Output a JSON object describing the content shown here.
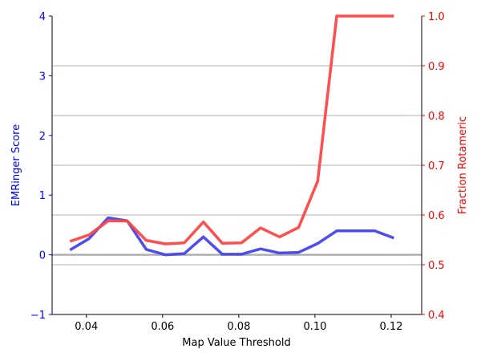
{
  "chart_data": {
    "type": "line",
    "title": "",
    "xlabel": "Map Value Threshold",
    "ylabel_left": "EMRinger Score",
    "ylabel_right": "Fraction Rotameric",
    "xlim": [
      0.031,
      0.128
    ],
    "ylim_left": [
      -1,
      4
    ],
    "ylim_right": [
      0.4,
      1.0
    ],
    "x_ticks": [
      0.04,
      0.06,
      0.08,
      0.1,
      0.12
    ],
    "x_tick_labels": [
      "0.04",
      "0.06",
      "0.08",
      "0.10",
      "0.12"
    ],
    "y_left_ticks": [
      -1,
      0,
      1,
      2,
      3,
      4
    ],
    "y_left_tick_labels": [
      "−1",
      "0",
      "1",
      "2",
      "3",
      "4"
    ],
    "y_right_ticks": [
      0.4,
      0.5,
      0.6,
      0.7,
      0.8,
      0.9,
      1.0
    ],
    "y_right_tick_labels": [
      "0.4",
      "0.5",
      "0.6",
      "0.7",
      "0.8",
      "0.9",
      "1.0"
    ],
    "grid": "horizontal-right-axis",
    "zero_line": 0,
    "colors": {
      "emringer": "#4444ee",
      "rotameric": "#ff4444",
      "left_axis_text": "#0000ff",
      "right_axis_text": "#ff0000",
      "grid": "#b0b0b0",
      "zero_line": "#b0b0b0"
    },
    "x": [
      0.0357,
      0.0407,
      0.0457,
      0.0507,
      0.0557,
      0.0607,
      0.0657,
      0.0707,
      0.0757,
      0.0807,
      0.0857,
      0.0907,
      0.0957,
      0.1007,
      0.1057,
      0.1107,
      0.1157,
      0.1207
    ],
    "series": [
      {
        "axis": "left",
        "color_key": "emringer",
        "values": [
          0.08,
          0.27,
          0.62,
          0.57,
          0.09,
          0.0,
          0.02,
          0.3,
          0.01,
          0.01,
          0.1,
          0.03,
          0.04,
          0.19,
          0.4,
          0.4,
          0.4,
          0.28
        ]
      },
      {
        "axis": "right",
        "color_key": "rotameric",
        "values": [
          0.547,
          0.56,
          0.588,
          0.588,
          0.549,
          0.542,
          0.544,
          0.586,
          0.543,
          0.544,
          0.574,
          0.556,
          0.575,
          0.668,
          1.0,
          1.0,
          1.0,
          1.0
        ]
      }
    ]
  }
}
